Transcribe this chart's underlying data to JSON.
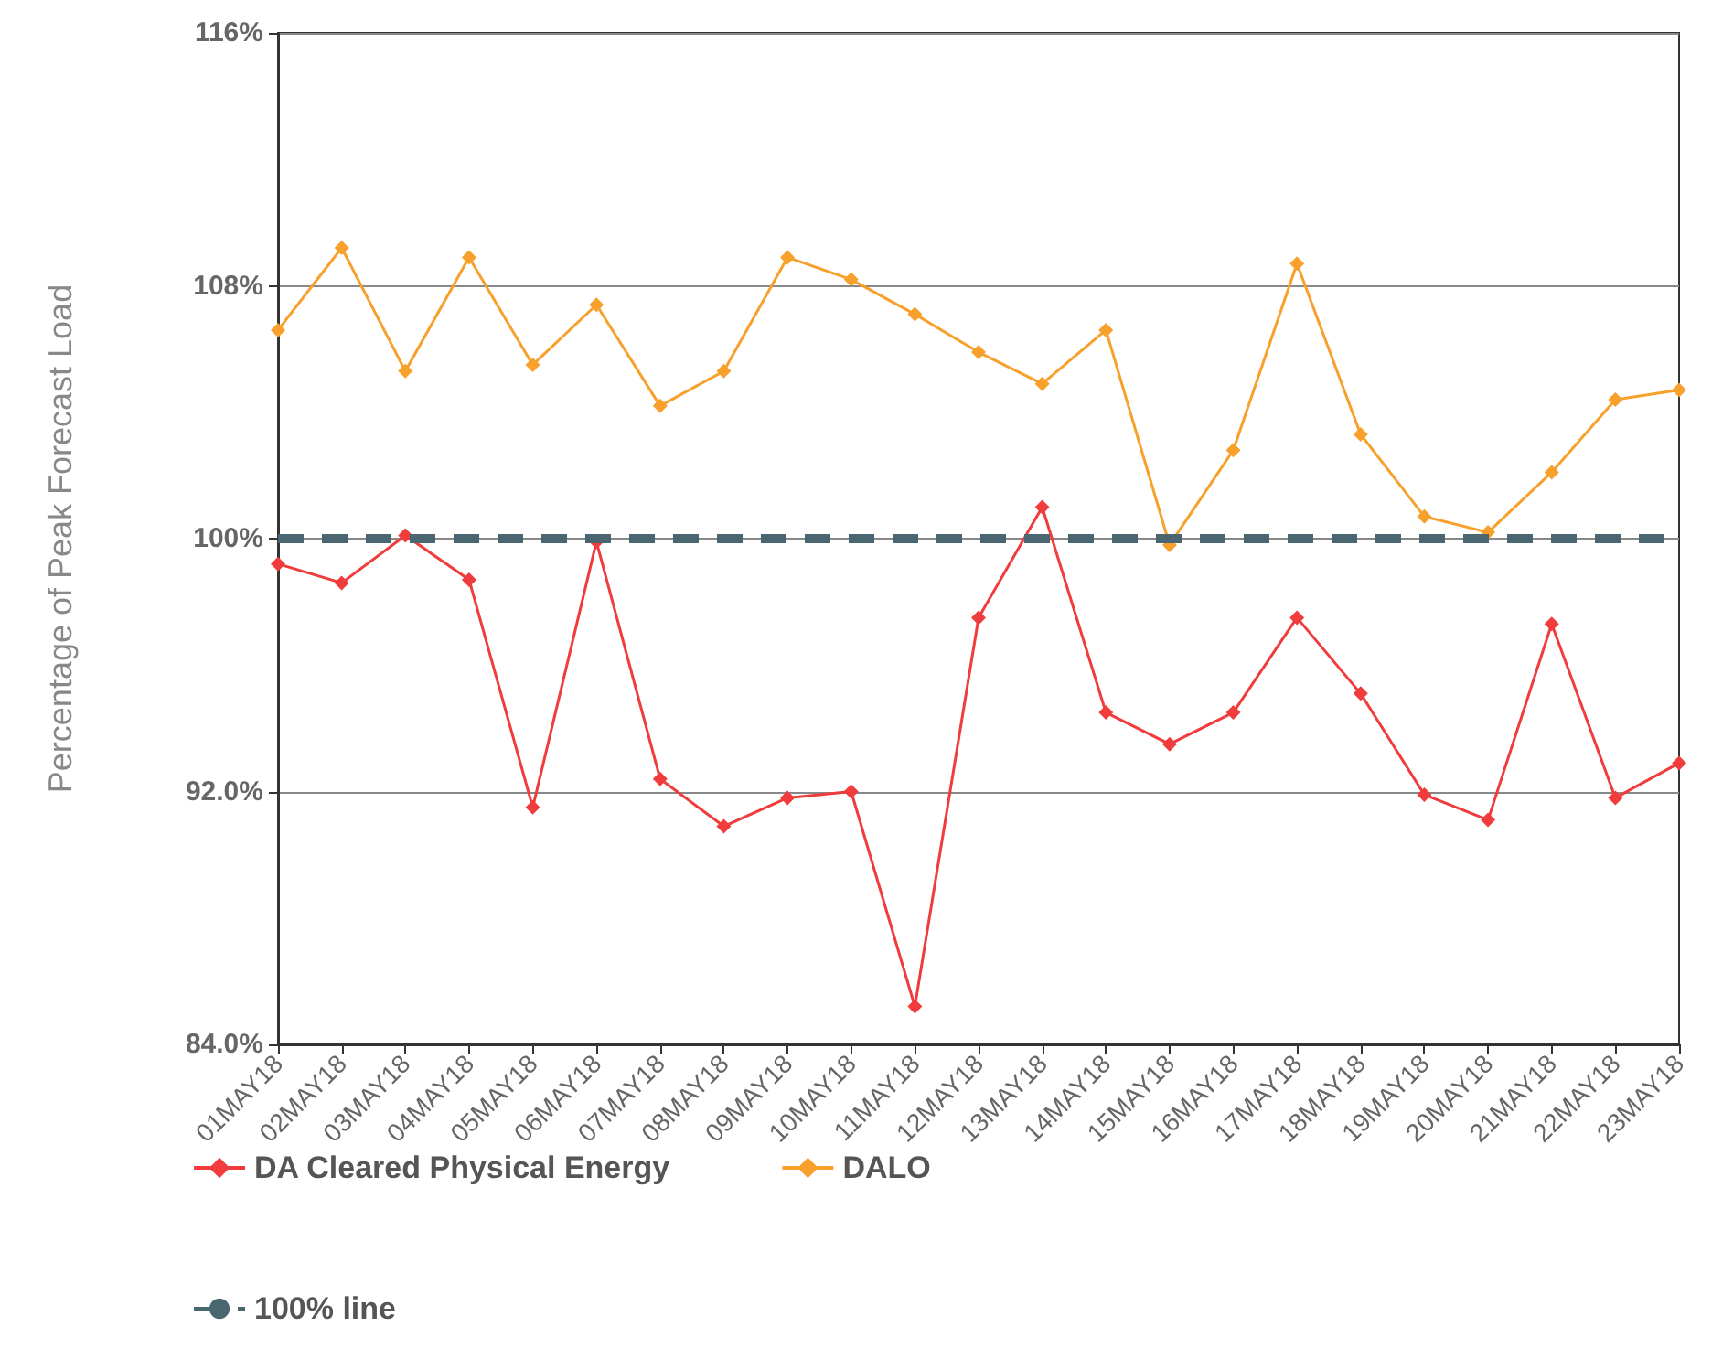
{
  "chart_data": {
    "type": "line",
    "ylabel": "Percentage of Peak Forecast Load",
    "categories": [
      "01MAY18",
      "02MAY18",
      "03MAY18",
      "04MAY18",
      "05MAY18",
      "06MAY18",
      "07MAY18",
      "08MAY18",
      "09MAY18",
      "10MAY18",
      "11MAY18",
      "12MAY18",
      "13MAY18",
      "14MAY18",
      "15MAY18",
      "16MAY18",
      "17MAY18",
      "18MAY18",
      "19MAY18",
      "20MAY18",
      "21MAY18",
      "22MAY18",
      "23MAY18"
    ],
    "series": [
      {
        "name": "DA Cleared Physical Energy",
        "color": "#f03c3c",
        "values": [
          99.2,
          98.6,
          100.1,
          98.7,
          91.5,
          99.9,
          92.4,
          90.9,
          91.8,
          92.0,
          85.2,
          97.5,
          101.0,
          94.5,
          93.5,
          94.5,
          97.5,
          95.1,
          91.9,
          91.1,
          97.3,
          91.8,
          92.9
        ]
      },
      {
        "name": "DALO",
        "color": "#f7a02c",
        "values": [
          106.6,
          109.2,
          105.3,
          108.9,
          105.5,
          107.4,
          104.2,
          105.3,
          108.9,
          108.2,
          107.1,
          105.9,
          104.9,
          106.6,
          99.8,
          102.8,
          108.7,
          103.3,
          100.7,
          100.2,
          102.1,
          104.4,
          104.7
        ]
      }
    ],
    "ylim": [
      84,
      116
    ],
    "yticks": [
      {
        "value": 84,
        "label": "84.0%"
      },
      {
        "value": 92,
        "label": "92.0%"
      },
      {
        "value": 100,
        "label": "100%"
      },
      {
        "value": 108,
        "label": "108%"
      },
      {
        "value": 116,
        "label": "116%"
      }
    ],
    "ref_lines": [
      {
        "axis": "y",
        "value": 100,
        "label": "100% line",
        "color": "#4a6670",
        "line_style": "dashed"
      }
    ],
    "grid": "y",
    "legend": "bottom",
    "marker": "diamond",
    "line_style": "solid"
  }
}
